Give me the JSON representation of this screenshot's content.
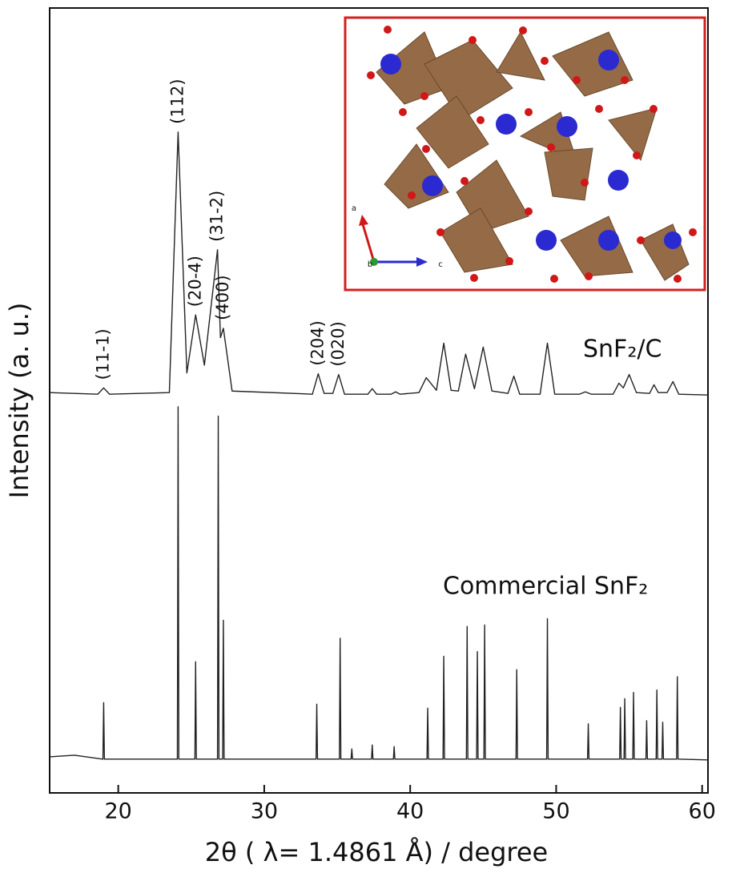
{
  "chart_data": {
    "type": "line",
    "xlabel": "2θ ( λ= 1.4861 Å) / degree",
    "ylabel": "Intensity (a. u.)",
    "xlim": [
      15.3,
      60.4
    ],
    "xticks": [
      20,
      30,
      40,
      50,
      60
    ],
    "ylim": [
      0,
      100
    ],
    "grid": false,
    "series": [
      {
        "name": "SnF₂/C",
        "color": "#222222",
        "x": [
          15.3,
          18.6,
          19.0,
          19.4,
          23.5,
          24.1,
          24.7,
          25.3,
          25.9,
          26.8,
          27.0,
          27.2,
          27.8,
          33.3,
          33.7,
          34.1,
          34.7,
          35.1,
          35.5,
          37.1,
          37.4,
          37.7,
          38.7,
          39.0,
          39.3,
          40.6,
          41.1,
          41.8,
          42.3,
          42.8,
          43.3,
          43.8,
          44.4,
          45.0,
          45.6,
          46.7,
          47.1,
          47.5,
          48.9,
          49.4,
          49.9,
          51.6,
          52.0,
          52.4,
          53.9,
          54.3,
          54.6,
          55.0,
          55.5,
          56.4,
          56.7,
          57.0,
          57.6,
          58.0,
          58.4,
          60.4
        ],
        "values": [
          51.0,
          50.8,
          51.6,
          50.8,
          51.0,
          84.2,
          53.5,
          60.9,
          54.5,
          69.2,
          58.0,
          59.2,
          51.2,
          50.8,
          53.4,
          50.9,
          50.9,
          53.3,
          50.8,
          50.8,
          51.5,
          50.8,
          50.8,
          51.1,
          50.8,
          51.0,
          52.9,
          51.3,
          57.3,
          51.3,
          51.2,
          55.9,
          51.5,
          56.8,
          51.2,
          50.9,
          53.1,
          50.8,
          50.8,
          57.3,
          50.8,
          50.8,
          51.1,
          50.8,
          50.8,
          52.2,
          51.6,
          53.3,
          51.0,
          50.9,
          52.0,
          51.0,
          51.0,
          52.4,
          50.8,
          50.7
        ]
      },
      {
        "name": "Commercial SnF₂",
        "color": "#222222",
        "x": [
          15.3,
          17.0,
          18.95,
          19.0,
          19.05,
          24.05,
          24.1,
          24.15,
          25.25,
          25.3,
          25.35,
          26.8,
          26.85,
          26.9,
          27.15,
          27.2,
          27.25,
          33.55,
          33.6,
          33.65,
          35.15,
          35.2,
          35.25,
          35.95,
          36.0,
          36.05,
          37.35,
          37.4,
          37.45,
          38.85,
          38.9,
          38.95,
          41.15,
          41.2,
          41.25,
          42.25,
          42.3,
          42.35,
          43.85,
          43.9,
          43.95,
          44.55,
          44.6,
          44.65,
          45.05,
          45.1,
          45.15,
          47.25,
          47.3,
          47.35,
          49.35,
          49.4,
          49.45,
          52.15,
          52.2,
          52.25,
          54.35,
          54.4,
          54.45,
          54.65,
          54.7,
          54.75,
          55.25,
          55.3,
          55.35,
          56.15,
          56.2,
          56.25,
          56.85,
          56.9,
          56.95,
          57.25,
          57.3,
          57.35,
          58.25,
          58.3,
          58.35,
          60.4
        ],
        "values": [
          4.6,
          4.8,
          4.3,
          11.5,
          4.3,
          4.3,
          49.2,
          4.3,
          4.3,
          16.7,
          4.3,
          4.3,
          48.0,
          4.3,
          4.3,
          22.0,
          4.3,
          4.3,
          11.3,
          4.3,
          4.3,
          19.7,
          4.3,
          4.3,
          5.6,
          4.3,
          4.3,
          6.1,
          4.3,
          4.3,
          5.9,
          4.3,
          4.3,
          10.8,
          4.3,
          4.3,
          17.4,
          4.3,
          4.3,
          21.2,
          4.3,
          4.3,
          18.0,
          4.3,
          4.3,
          21.4,
          4.3,
          4.3,
          15.7,
          4.3,
          4.3,
          22.2,
          4.3,
          4.3,
          8.8,
          4.3,
          4.3,
          10.9,
          4.3,
          4.3,
          12.0,
          4.3,
          4.3,
          12.8,
          4.3,
          4.3,
          9.2,
          4.3,
          4.3,
          13.1,
          4.3,
          4.3,
          9.0,
          4.3,
          4.3,
          14.8,
          4.3,
          4.2
        ]
      }
    ],
    "annotations": [
      {
        "text": "(11-1)",
        "x": 19.0
      },
      {
        "text": "(112)",
        "x": 24.1
      },
      {
        "text": "(20-4)",
        "x": 25.3
      },
      {
        "text": "(31-2)",
        "x": 26.8
      },
      {
        "text": "(400)",
        "x": 27.2
      },
      {
        "text": "(204)",
        "x": 33.7
      },
      {
        "text": "(020)",
        "x": 35.1
      }
    ],
    "inset": {
      "axis_labels": [
        "a",
        "b",
        "c"
      ]
    }
  }
}
